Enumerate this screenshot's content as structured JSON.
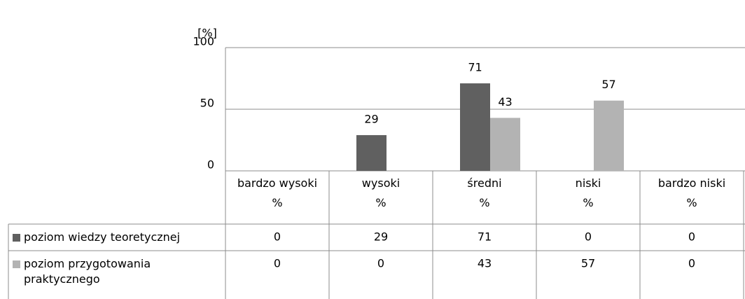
{
  "chart_data": {
    "type": "bar",
    "y_axis_label": "[%]",
    "categories": [
      "bardzo wysoki\n%",
      "wysoki\n%",
      "średni\n%",
      "niski\n%",
      "bardzo niski\n%"
    ],
    "series": [
      {
        "name": "poziom wiedzy teoretycznej",
        "color": "#606060",
        "values": [
          0,
          29,
          71,
          0,
          0
        ]
      },
      {
        "name": "poziom przygotowania praktycznego",
        "color": "#b3b3b3",
        "values": [
          0,
          0,
          43,
          57,
          0
        ]
      }
    ],
    "ylim": [
      0,
      100
    ],
    "yticks": [
      0,
      50,
      100
    ],
    "grid": true,
    "data_table": true
  }
}
